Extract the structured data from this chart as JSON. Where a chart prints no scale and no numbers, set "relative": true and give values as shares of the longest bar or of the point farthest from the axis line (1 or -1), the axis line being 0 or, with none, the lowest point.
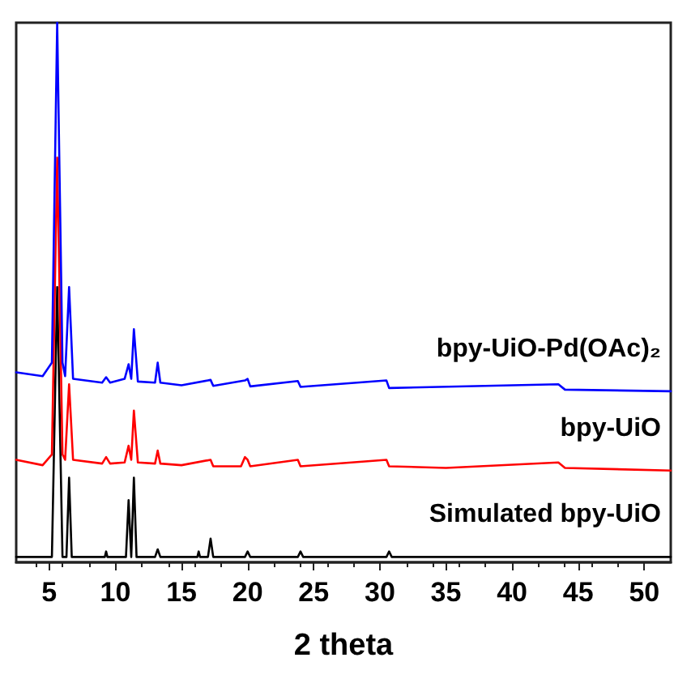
{
  "chart_data": {
    "type": "line",
    "relative": true,
    "xlabel": "2 theta",
    "xlim": [
      2.5,
      52
    ],
    "xticks": [
      5,
      10,
      15,
      20,
      25,
      30,
      35,
      40,
      45,
      50
    ],
    "grid": false,
    "legend": false,
    "marker": "none",
    "line_style": "solid",
    "series": [
      {
        "name": "Simulated bpy-UiO",
        "color": "#000000",
        "x": [
          2.5,
          5.2,
          5.6,
          6.0,
          6.3,
          6.5,
          6.7,
          9.2,
          9.3,
          9.4,
          10.8,
          11.0,
          11.2,
          11.4,
          11.6,
          13.0,
          13.2,
          13.4,
          16.2,
          16.3,
          16.4,
          17.0,
          17.2,
          17.4,
          19.8,
          20.0,
          20.2,
          23.8,
          24.0,
          24.2,
          30.5,
          30.7,
          30.9,
          52
        ],
        "values": [
          0.01,
          0.01,
          0.51,
          0.01,
          0.01,
          0.157,
          0.01,
          0.01,
          0.02,
          0.01,
          0.01,
          0.115,
          0.01,
          0.157,
          0.01,
          0.01,
          0.024,
          0.01,
          0.01,
          0.02,
          0.01,
          0.01,
          0.044,
          0.01,
          0.01,
          0.02,
          0.01,
          0.01,
          0.02,
          0.01,
          0.01,
          0.02,
          0.01,
          0.01
        ]
      },
      {
        "name": "bpy-UiO",
        "color": "#ff0000",
        "x": [
          2.5,
          4.5,
          5.2,
          5.6,
          6.0,
          6.2,
          6.5,
          6.8,
          9.0,
          9.3,
          9.6,
          10.7,
          11.0,
          11.2,
          11.4,
          11.7,
          13.0,
          13.2,
          13.4,
          15.0,
          17.2,
          17.4,
          19.5,
          19.8,
          20.0,
          20.2,
          23.8,
          24.0,
          30.5,
          30.7,
          35,
          43.5,
          44,
          52
        ],
        "values": [
          0.19,
          0.18,
          0.2,
          0.75,
          0.2,
          0.19,
          0.33,
          0.19,
          0.183,
          0.195,
          0.183,
          0.185,
          0.216,
          0.19,
          0.281,
          0.185,
          0.183,
          0.207,
          0.183,
          0.18,
          0.19,
          0.178,
          0.178,
          0.195,
          0.19,
          0.178,
          0.19,
          0.178,
          0.19,
          0.178,
          0.175,
          0.185,
          0.175,
          0.17
        ]
      },
      {
        "name": "bpy-UiO-Pd(OAc)₂",
        "color": "#0000ff",
        "x": [
          2.5,
          4.5,
          5.2,
          5.6,
          6.0,
          6.2,
          6.5,
          6.8,
          9.0,
          9.3,
          9.6,
          10.7,
          11.0,
          11.2,
          11.4,
          11.7,
          13.0,
          13.2,
          13.4,
          15,
          17.2,
          17.4,
          19.8,
          20.0,
          20.2,
          23.8,
          24.0,
          30.5,
          30.7,
          43.5,
          44,
          52
        ],
        "values": [
          0.352,
          0.345,
          0.37,
          1.0,
          0.37,
          0.345,
          0.51,
          0.34,
          0.333,
          0.343,
          0.333,
          0.34,
          0.367,
          0.34,
          0.432,
          0.335,
          0.333,
          0.37,
          0.333,
          0.328,
          0.338,
          0.327,
          0.337,
          0.34,
          0.326,
          0.336,
          0.325,
          0.337,
          0.323,
          0.33,
          0.32,
          0.317
        ]
      }
    ]
  }
}
